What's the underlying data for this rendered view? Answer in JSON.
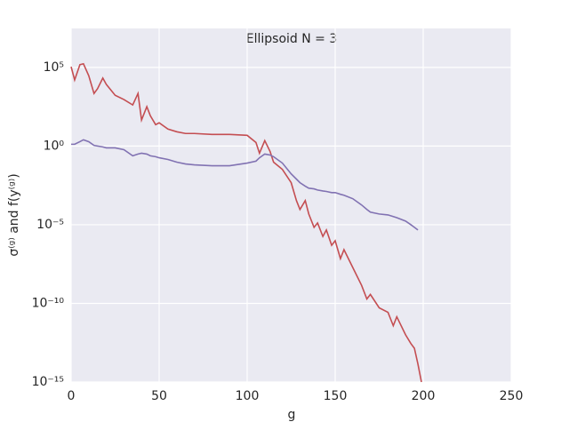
{
  "chart_data": {
    "type": "line",
    "title": "Ellipsoid N = 3",
    "x_label": "g",
    "y_label": "σ⁽ᵍ⁾  and  f(y⁽ᵍ⁾)",
    "y_log": true,
    "grid": true,
    "xlim": [
      0,
      250
    ],
    "xticks": [
      0,
      50,
      100,
      150,
      200,
      250
    ],
    "ylim": [
      1e-15,
      30000000.0
    ],
    "yticks": [
      {
        "value": 1e-15,
        "label": "10⁻¹⁵"
      },
      {
        "value": 1e-10,
        "label": "10⁻¹⁰"
      },
      {
        "value": 1e-05,
        "label": "10⁻⁵"
      },
      {
        "value": 1,
        "label": "10⁰"
      },
      {
        "value": 100000.0,
        "label": "10⁵"
      }
    ],
    "x": [
      0,
      2,
      5,
      7,
      10,
      13,
      15,
      18,
      20,
      25,
      30,
      35,
      38,
      40,
      43,
      45,
      48,
      50,
      55,
      60,
      65,
      70,
      80,
      90,
      100,
      105,
      107,
      110,
      113,
      115,
      120,
      125,
      128,
      130,
      133,
      135,
      138,
      140,
      143,
      145,
      148,
      150,
      153,
      155,
      160,
      165,
      168,
      170,
      175,
      180,
      183,
      185,
      190,
      193,
      195,
      197,
      199
    ],
    "series": [
      {
        "color": "#c44e52",
        "values": [
          110000.0,
          16000.0,
          150000.0,
          170000.0,
          30000.0,
          2200.0,
          4400.0,
          21000.0,
          8300.0,
          1700.0,
          900,
          410,
          2200.0,
          45,
          320,
          85,
          23,
          30,
          12,
          8.1,
          6.3,
          6.3,
          5.5,
          5.5,
          4.8,
          1.7,
          0.35,
          2.2,
          0.46,
          0.095,
          0.033,
          0.0047,
          0.00034,
          9.3e-05,
          0.00034,
          4.8e-05,
          6.8e-06,
          1.3e-05,
          1.8e-06,
          4.6e-06,
          4.9e-07,
          9.5e-07,
          6.9e-08,
          2.6e-07,
          1.9e-08,
          1.4e-09,
          1.9e-10,
          3.7e-10,
          5.2e-11,
          2.7e-11,
          3.8e-12,
          1.4e-11,
          1e-12,
          2.8e-13,
          1.4e-13,
          1.4e-14,
          1e-15
        ]
      },
      {
        "color": "#8172b2",
        "values": [
          1.3,
          1.3,
          1.9,
          2.5,
          1.9,
          1.1,
          1.0,
          0.88,
          0.77,
          0.77,
          0.59,
          0.24,
          0.31,
          0.35,
          0.31,
          0.24,
          0.21,
          0.18,
          0.14,
          0.095,
          0.073,
          0.064,
          0.056,
          0.056,
          0.083,
          0.11,
          0.18,
          0.31,
          0.27,
          0.21,
          0.083,
          0.017,
          0.0079,
          0.0047,
          0.0028,
          0.0021,
          0.0019,
          0.0016,
          0.0014,
          0.0013,
          0.0011,
          0.0011,
          0.00086,
          0.00075,
          0.00045,
          0.00018,
          9.3e-05,
          6.3e-05,
          4.8e-05,
          4.2e-05,
          3.3e-05,
          2.8e-05,
          1.7e-05,
          1e-05,
          6.8e-06,
          4.6e-06,
          null
        ]
      }
    ]
  }
}
